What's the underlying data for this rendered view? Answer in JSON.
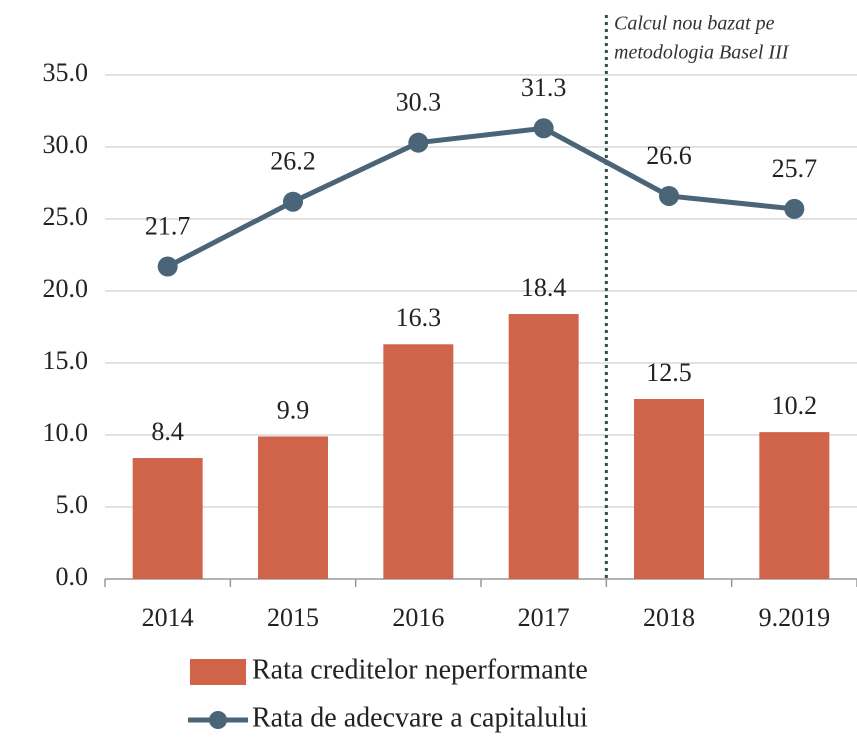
{
  "chart_data": {
    "type": "bar_line",
    "categories": [
      "2014",
      "2015",
      "2016",
      "2017",
      "2018",
      "9.2019"
    ],
    "series": [
      {
        "name": "Rata creditelor neperformante",
        "type": "bar",
        "color": "#d0644a",
        "values": [
          8.4,
          9.9,
          16.3,
          18.4,
          12.5,
          10.2
        ]
      },
      {
        "name": "Rata de adecvare a capitalului",
        "type": "line",
        "color": "#4a6478",
        "values": [
          21.7,
          26.2,
          30.3,
          31.3,
          26.6,
          25.7
        ]
      }
    ],
    "annotation": [
      "Calcul nou bazat pe",
      "metodologia Basel III"
    ],
    "ylim": [
      0,
      35
    ],
    "yticks": [
      {
        "value": 0,
        "label": "0.0"
      },
      {
        "value": 5,
        "label": "5.0"
      },
      {
        "value": 10,
        "label": "10.0"
      },
      {
        "value": 15,
        "label": "15.0"
      },
      {
        "value": 20,
        "label": "20.0"
      },
      {
        "value": 25,
        "label": "25.0"
      },
      {
        "value": 30,
        "label": "30.0"
      },
      {
        "value": 35,
        "label": "35.0"
      }
    ],
    "grid": true
  }
}
